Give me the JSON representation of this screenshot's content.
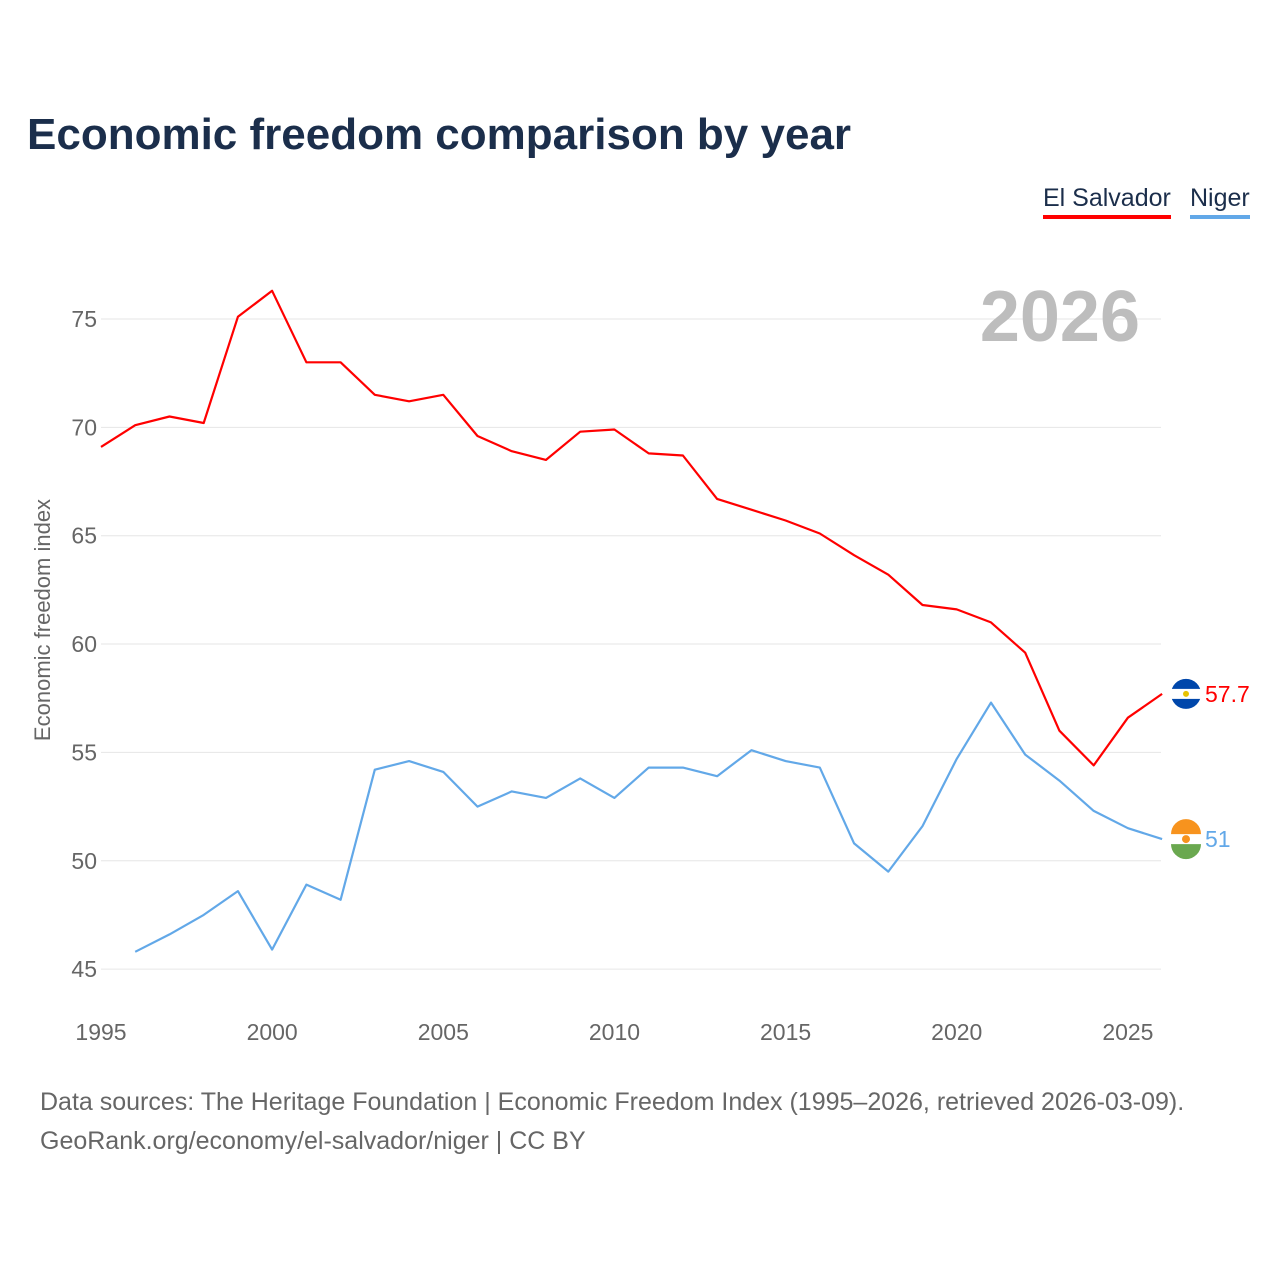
{
  "chart_data": {
    "type": "line",
    "title": "Economic freedom comparison by year",
    "xlabel": "",
    "ylabel": "Economic freedom index",
    "xlim": [
      1995,
      2026
    ],
    "ylim": [
      45,
      77
    ],
    "xticks": [
      1995,
      2000,
      2005,
      2010,
      2015,
      2020,
      2025
    ],
    "yticks": [
      45,
      50,
      55,
      60,
      65,
      70,
      75
    ],
    "grid": true,
    "legend_position": "top-right",
    "annotation": "2026",
    "series": [
      {
        "name": "El Salvador",
        "color": "#ff0000",
        "end_label": "57.7",
        "x": [
          1995,
          1996,
          1997,
          1998,
          1999,
          2000,
          2001,
          2002,
          2003,
          2004,
          2005,
          2006,
          2007,
          2008,
          2009,
          2010,
          2011,
          2012,
          2013,
          2014,
          2015,
          2016,
          2017,
          2018,
          2019,
          2020,
          2021,
          2022,
          2023,
          2024,
          2025,
          2026
        ],
        "values": [
          69.1,
          70.1,
          70.5,
          70.2,
          75.1,
          76.3,
          73.0,
          73.0,
          71.5,
          71.2,
          71.5,
          69.6,
          68.9,
          68.5,
          69.8,
          69.9,
          68.8,
          68.7,
          66.7,
          66.2,
          65.7,
          65.1,
          64.1,
          63.2,
          61.8,
          61.6,
          61.0,
          59.6,
          56.0,
          54.4,
          56.6,
          57.7
        ]
      },
      {
        "name": "Niger",
        "color": "#62a8e8",
        "end_label": "51",
        "x": [
          1996,
          1997,
          1998,
          1999,
          2000,
          2001,
          2002,
          2003,
          2004,
          2005,
          2006,
          2007,
          2008,
          2009,
          2010,
          2011,
          2012,
          2013,
          2014,
          2015,
          2016,
          2017,
          2018,
          2019,
          2020,
          2021,
          2022,
          2023,
          2024,
          2025,
          2026
        ],
        "values": [
          45.8,
          46.6,
          47.5,
          48.6,
          45.9,
          48.9,
          48.2,
          54.2,
          54.6,
          54.1,
          52.5,
          53.2,
          52.9,
          53.8,
          52.9,
          54.3,
          54.3,
          53.9,
          55.1,
          54.6,
          54.3,
          50.8,
          49.5,
          51.6,
          54.7,
          57.3,
          54.9,
          53.7,
          52.3,
          51.5,
          51.0
        ]
      }
    ]
  },
  "footer": {
    "line1": "Data sources: The Heritage Foundation | Economic Freedom Index (1995–2026, retrieved 2026-03-09).",
    "line2": "GeoRank.org/economy/el-salvador/niger | CC BY"
  }
}
